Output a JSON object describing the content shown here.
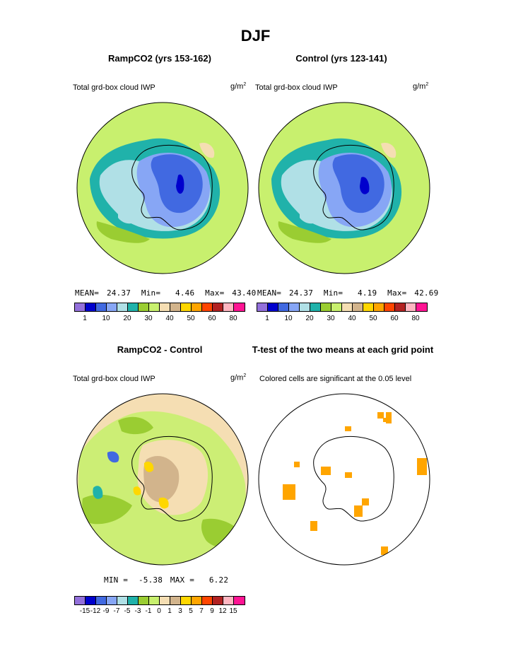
{
  "title": "DJF",
  "panels": [
    {
      "title": "RampCO2 (yrs 153-162)",
      "left_label": "Total grd-box cloud IWP",
      "units": "g/m",
      "units_sup": "2",
      "mean_label": "MEAN=",
      "mean": "24.37",
      "min_label": "Min=",
      "min": "4.46",
      "max_label": "Max=",
      "max": "43.40"
    },
    {
      "title": "Control (yrs 123-141)",
      "left_label": "Total grd-box cloud IWP",
      "units": "g/m",
      "units_sup": "2",
      "mean_label": "MEAN=",
      "mean": "24.37",
      "min_label": "Min=",
      "min": "4.19",
      "max_label": "Max=",
      "max": "42.69"
    },
    {
      "title": "RampCO2 - Control",
      "left_label": "Total grd-box cloud IWP",
      "units": "g/m",
      "units_sup": "2",
      "min_label": "MIN =",
      "min": "-5.38",
      "max_label": "MAX =",
      "max": "6.22"
    },
    {
      "title": "T-test of the two means at each grid point",
      "left_label": "Colored cells are significant at the 0.05 level"
    }
  ],
  "colorbar_top": {
    "colors": [
      "#9370db",
      "#0000cd",
      "#4169e1",
      "#87a6f5",
      "#b0e0e6",
      "#20b2aa",
      "#9acd32",
      "#c8f06e",
      "#f5deb3",
      "#d2b48c",
      "#ffd700",
      "#ffa500",
      "#ff4500",
      "#b22222",
      "#ffb6c1",
      "#ff1493"
    ],
    "tick_labels": [
      "1",
      "10",
      "20",
      "30",
      "40",
      "50",
      "60",
      "80"
    ]
  },
  "colorbar_diff": {
    "colors": [
      "#9370db",
      "#0000cd",
      "#4169e1",
      "#87a6f5",
      "#b0e0e6",
      "#20b2aa",
      "#9acd32",
      "#c8f06e",
      "#f5deb3",
      "#d2b48c",
      "#ffd700",
      "#ffa500",
      "#ff4500",
      "#b22222",
      "#ffb6c1",
      "#ff1493"
    ],
    "tick_labels": [
      "-15",
      "-12",
      "-9",
      "-7",
      "-5",
      "-3",
      "-1",
      "0",
      "1",
      "3",
      "5",
      "7",
      "9",
      "12",
      "15"
    ]
  },
  "chart_data": [
    {
      "type": "heatmap",
      "title": "RampCO2 (yrs 153-162)",
      "variable": "Total grd-box cloud IWP",
      "units": "g/m2",
      "projection": "south polar stereographic",
      "mean": 24.37,
      "min": 4.46,
      "max": 43.4,
      "levels": [
        1,
        5,
        10,
        15,
        20,
        25,
        30,
        35,
        40,
        45,
        50,
        55,
        60,
        70,
        80
      ]
    },
    {
      "type": "heatmap",
      "title": "Control (yrs 123-141)",
      "variable": "Total grd-box cloud IWP",
      "units": "g/m2",
      "projection": "south polar stereographic",
      "mean": 24.37,
      "min": 4.19,
      "max": 42.69,
      "levels": [
        1,
        5,
        10,
        15,
        20,
        25,
        30,
        35,
        40,
        45,
        50,
        55,
        60,
        70,
        80
      ]
    },
    {
      "type": "heatmap",
      "title": "RampCO2 - Control",
      "variable": "Total grd-box cloud IWP",
      "units": "g/m2",
      "projection": "south polar stereographic",
      "min": -5.38,
      "max": 6.22,
      "levels": [
        -15,
        -12,
        -9,
        -7,
        -5,
        -3,
        -1,
        0,
        1,
        3,
        5,
        7,
        9,
        12,
        15
      ]
    },
    {
      "type": "heatmap",
      "title": "T-test of the two means at each grid point",
      "note": "Colored cells are significant at the 0.05 level",
      "significance_level": 0.05,
      "significant_color": "#ffa500"
    }
  ]
}
